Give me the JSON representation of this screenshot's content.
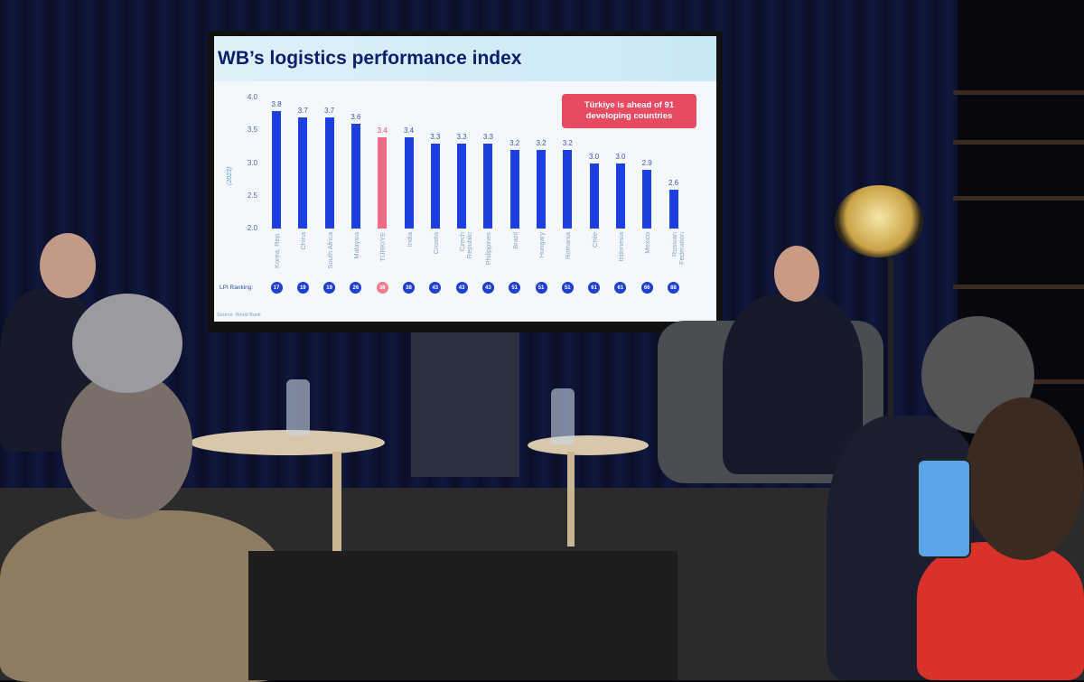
{
  "slide": {
    "title": "WB’s logistics performance index",
    "callout": "Türkiye is ahead of 91 developing countries",
    "ranking_label": "LPI Ranking:",
    "source": "Source: World Bank",
    "colors": {
      "bar": "#1e3fe0",
      "highlight": "#ee6c84",
      "title": "#0b1f6e",
      "callout": "#e84a62"
    }
  },
  "chart_data": {
    "type": "bar",
    "title": "WB’s logistics performance index",
    "ylabel": "(2023)",
    "ylim": [
      2.0,
      4.0
    ],
    "yticks": [
      "4.0",
      "3.5",
      "3.0",
      "2.5",
      "2.0"
    ],
    "categories": [
      "Korea, Rep.",
      "China",
      "South Africa",
      "Malaysia",
      "TÜRKIYE",
      "India",
      "Croatia",
      "Czech Republic",
      "Philippines",
      "Brazil",
      "Hungary",
      "Romania",
      "Chile",
      "Indonesia",
      "Mexico",
      "Russian Federation"
    ],
    "values": [
      3.8,
      3.7,
      3.7,
      3.6,
      3.4,
      3.4,
      3.3,
      3.3,
      3.3,
      3.2,
      3.2,
      3.2,
      3.0,
      3.0,
      2.9,
      2.6
    ],
    "value_labels": [
      "3.8",
      "3.7",
      "3.7",
      "3.6",
      "3.4",
      "3.4",
      "3.3",
      "3.3",
      "3.3",
      "3.2",
      "3.2",
      "3.2",
      "3.0",
      "3.0",
      "2.9",
      "2.6"
    ],
    "lpi_ranking": [
      "17",
      "19",
      "19",
      "26",
      "38",
      "38",
      "43",
      "43",
      "43",
      "51",
      "51",
      "51",
      "61",
      "61",
      "66",
      "88"
    ],
    "highlight_index": 4,
    "grid": false
  }
}
